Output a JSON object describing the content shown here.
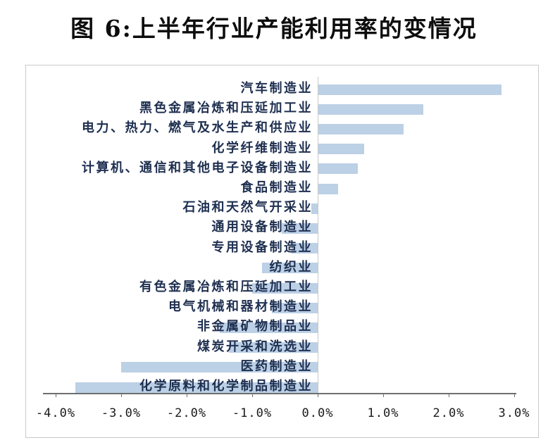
{
  "title": "图 6:上半年行业产能利用率的变情况",
  "colors": {
    "bar_fill": "#bcd0e6",
    "category_label": "#1e2f50",
    "axis_line": "#6e6e6e",
    "zero_line": "#c9c9c9",
    "panel_border": "#c9c9c9",
    "title_text": "#0d0d0d",
    "tick_label": "#1a1a1a"
  },
  "chart_data": {
    "type": "bar",
    "orientation": "horizontal",
    "title": "图 6:上半年行业产能利用率的变情况",
    "unit": "%",
    "categories": [
      "汽车制造业",
      "黑色金属冶炼和压延加工业",
      "电力、热力、燃气及水生产和供应业",
      "化学纤维制造业",
      "计算机、通信和其他电子设备制造业",
      "食品制造业",
      "石油和天然气开采业",
      "通用设备制造业",
      "专用设备制造业",
      "纺织业",
      "有色金属冶炼和压延加工业",
      "电气机械和器材制造业",
      "非金属矿物制品业",
      "煤炭开采和洗选业",
      "医药制造业",
      "化学原料和化学制品制造业"
    ],
    "values": [
      2.8,
      1.6,
      1.3,
      0.7,
      0.6,
      0.3,
      -0.1,
      -0.55,
      -0.4,
      -0.85,
      -1.0,
      -0.7,
      -1.5,
      -1.35,
      -3.0,
      -3.7
    ],
    "xlim": [
      -4.0,
      3.0
    ],
    "x_tick_labels": [
      "-4.0%",
      "-3.0%",
      "-2.0%",
      "-1.0%",
      "0.0%",
      "1.0%",
      "2.0%",
      "3.0%"
    ],
    "x_tick_values": [
      -4,
      -3,
      -2,
      -1,
      0,
      1,
      2,
      3
    ],
    "grid": false,
    "legend": false,
    "xlabel": "",
    "ylabel": ""
  }
}
